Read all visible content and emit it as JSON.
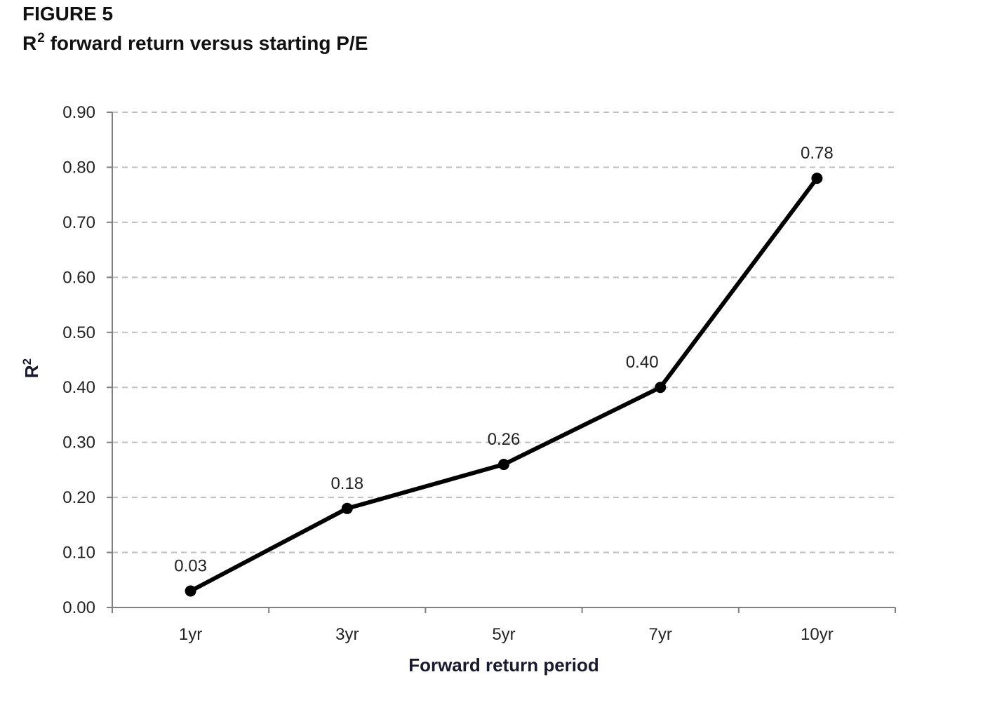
{
  "figure": {
    "label": "FIGURE 5",
    "title_prefix": "R",
    "title_sup": "2",
    "title_rest": " forward return versus starting P/E"
  },
  "chart_data": {
    "type": "line",
    "categories": [
      "1yr",
      "3yr",
      "5yr",
      "7yr",
      "10yr"
    ],
    "values": [
      0.03,
      0.18,
      0.26,
      0.4,
      0.78
    ],
    "data_labels": [
      "0.03",
      "0.18",
      "0.26",
      "0.40",
      "0.78"
    ],
    "xlabel": "Forward return period",
    "ylabel_main": "R",
    "ylabel_sup": "2",
    "ylim": [
      0,
      0.9
    ],
    "yticks": [
      0,
      0.1,
      0.2,
      0.3,
      0.4,
      0.5,
      0.6,
      0.7,
      0.8,
      0.9
    ],
    "ytick_labels": [
      "0.00",
      "0.10",
      "0.20",
      "0.30",
      "0.40",
      "0.50",
      "0.60",
      "0.70",
      "0.80",
      "0.90"
    ],
    "grid": true,
    "grid_style": "dashed",
    "legend": "none",
    "colors": {
      "line": "#000000",
      "grid": "#bfbfbf",
      "axis": "#808080"
    }
  }
}
